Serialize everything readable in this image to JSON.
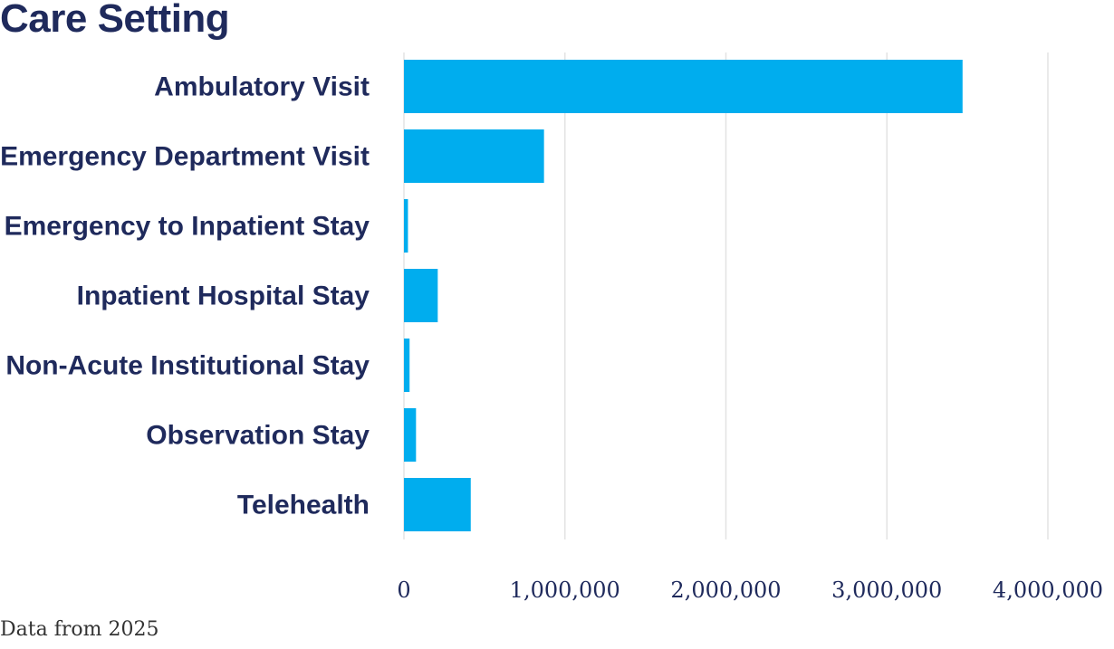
{
  "chart_data": {
    "type": "bar",
    "orientation": "horizontal",
    "title": "Care Setting",
    "categories": [
      "Ambulatory Visit",
      "Emergency Department Visit",
      "Emergency to Inpatient Stay",
      "Inpatient Hospital Stay",
      "Non-Acute Institutional Stay",
      "Observation Stay",
      "Telehealth"
    ],
    "values": [
      3470000,
      870000,
      25000,
      210000,
      35000,
      75000,
      415000
    ],
    "xlim": [
      0,
      4000000
    ],
    "xticks": [
      0,
      1000000,
      2000000,
      3000000,
      4000000
    ],
    "xtick_labels": [
      "0",
      "1,000,000",
      "2,000,000",
      "3,000,000",
      "4,000,000"
    ],
    "grid": "vertical",
    "bar_color": "#00adee",
    "text_color": "#1f2a5c"
  },
  "footnote": "Data from 2025"
}
